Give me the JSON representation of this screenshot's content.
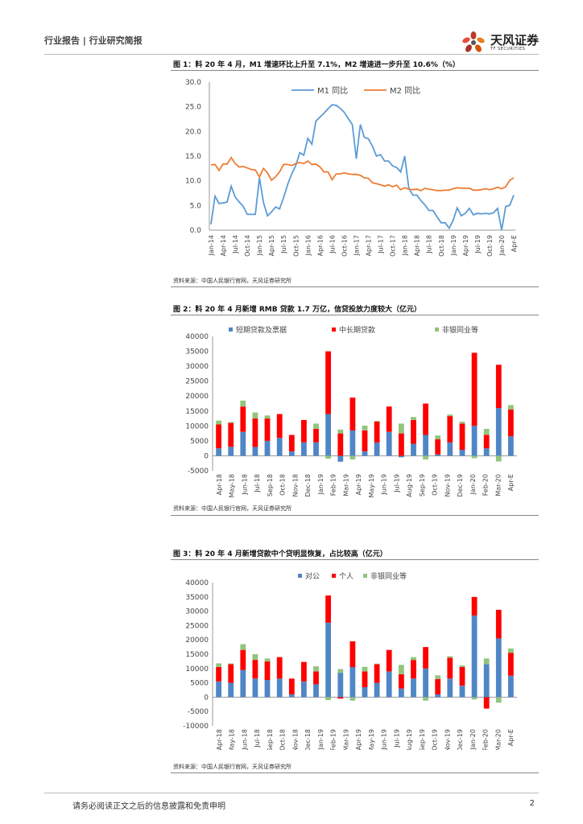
{
  "header": {
    "left_label": "行业报告 | 行业研究简报",
    "logo_cn": "天风证券",
    "logo_en": "TF SECURITIES"
  },
  "footer": {
    "disclaimer": "请务必阅读正文之后的信息披露和免责申明",
    "page_number": "2"
  },
  "colors": {
    "blue": "#5b9bd5",
    "orange": "#ed7d31",
    "red": "#ff0000",
    "green": "#92c47d",
    "bar_blue": "#4f86c6"
  },
  "chart_data": [
    {
      "type": "line",
      "title": "图 1：料 20 年 4 月，M1 增速环比上升至 7.1%，M2 增速进一步升至 10.6%（%）",
      "source": "资料来源：中国人民银行官网，天风证券研究所",
      "ylim": [
        0,
        30
      ],
      "yticks": [
        "0.0",
        "5.0",
        "10.0",
        "15.0",
        "20.0",
        "25.0",
        "30.0"
      ],
      "x_tick_labels": [
        "Jan-14",
        "Apr-14",
        "Jul-14",
        "Oct-14",
        "Jan-15",
        "Apr-15",
        "Jul-15",
        "Oct-15",
        "Jan-16",
        "Apr-16",
        "Jul-16",
        "Oct-16",
        "Jan-17",
        "Apr-17",
        "Jul-17",
        "Oct-17",
        "Jan-18",
        "Apr-18",
        "Jul-18",
        "Oct-18",
        "Jan-19",
        "Apr-19",
        "Jul-19",
        "Oct-19",
        "Jan-20",
        "Apr-E"
      ],
      "series": [
        {
          "name": "M1 同比",
          "values": [
            1.2,
            6.9,
            5.4,
            5.5,
            5.7,
            8.9,
            6.7,
            5.7,
            4.8,
            3.2,
            3.2,
            3.2,
            10.6,
            5.6,
            2.9,
            3.7,
            4.7,
            4.3,
            6.6,
            9.3,
            11.4,
            13.1,
            15.7,
            15.2,
            18.6,
            17.4,
            22.1,
            22.9,
            23.7,
            24.6,
            25.4,
            25.3,
            24.7,
            23.9,
            22.6,
            21.4,
            14.5,
            21.4,
            18.8,
            18.5,
            17.0,
            15.0,
            15.3,
            14.0,
            14.0,
            13.0,
            12.7,
            11.8,
            15.0,
            8.5,
            7.1,
            7.1,
            6.0,
            5.1,
            4.0,
            4.0,
            2.7,
            1.5,
            1.5,
            0.4,
            2.0,
            4.5,
            2.9,
            3.4,
            4.4,
            3.1,
            3.4,
            3.3,
            3.4,
            3.3,
            3.5,
            4.4,
            0.0,
            4.8,
            5.0,
            7.1
          ]
        },
        {
          "name": "M2 同比",
          "values": [
            13.2,
            13.3,
            12.1,
            13.4,
            13.4,
            14.7,
            13.5,
            12.8,
            12.9,
            12.6,
            12.3,
            12.2,
            10.8,
            12.5,
            11.6,
            10.1,
            10.8,
            11.8,
            13.3,
            13.3,
            13.1,
            13.5,
            13.7,
            13.5,
            14.0,
            13.3,
            13.4,
            12.8,
            11.8,
            11.8,
            10.2,
            11.4,
            11.4,
            11.6,
            11.4,
            11.3,
            11.3,
            11.1,
            10.6,
            10.5,
            9.6,
            9.4,
            9.2,
            8.9,
            9.2,
            8.8,
            9.1,
            8.2,
            8.6,
            8.3,
            8.2,
            8.3,
            8.0,
            8.5,
            8.3,
            8.2,
            8.0,
            8.0,
            8.1,
            8.1,
            8.4,
            8.6,
            8.5,
            8.5,
            8.5,
            8.1,
            8.1,
            8.2,
            8.4,
            8.2,
            8.4,
            8.7,
            8.4,
            8.8,
            10.1,
            10.6
          ]
        }
      ]
    },
    {
      "type": "bar",
      "stacked": true,
      "title": "图 2：料 20 年 4 月新增 RMB 贷款 1.7 万亿，信贷投放力度较大（亿元）",
      "source": "资料来源：中国人民银行官网，天风证券研究所",
      "ylim": [
        -5000,
        40000
      ],
      "yticks": [
        "-5000",
        "0",
        "5000",
        "10000",
        "15000",
        "20000",
        "25000",
        "30000",
        "35000",
        "40000"
      ],
      "categories": [
        "Apr-18",
        "May-18",
        "Jun-18",
        "Jul-18",
        "Aug-18",
        "Sep-18",
        "Oct-18",
        "Nov-18",
        "Dec-18",
        "Jan-19",
        "Feb-19",
        "Mar-19",
        "Apr-19",
        "May-19",
        "Jun-19",
        "Jul-19",
        "Aug-19",
        "Sep-19",
        "Oct-19",
        "Nov-19",
        "Dec-19",
        "Jan-20",
        "Feb-20",
        "Mar-20",
        "Apr-E"
      ],
      "x_tick_labels": [
        "Apr-18",
        "May-18",
        "Jun-18",
        "Jul-18",
        "Sep-18",
        "Oct-18",
        "Nov-18",
        "Dec-18",
        "Jan-19",
        "Feb-19",
        "Mar-19",
        "Apr-19",
        "May-19",
        "Jun-19",
        "Jul-19",
        "Aug-19",
        "Sep-19",
        "Oct-19",
        "Nov-19",
        "Dec-19",
        "Jan-20",
        "Feb-20",
        "Mar-20",
        "Apr-E"
      ],
      "series": [
        {
          "name": "短期贷款及票据",
          "values": [
            2500,
            3000,
            8000,
            3000,
            5000,
            6000,
            1500,
            4500,
            4500,
            14000,
            -2000,
            8500,
            1500,
            4500,
            8000,
            -500,
            4000,
            7000,
            500,
            4500,
            2000,
            10000,
            2500,
            16000,
            6500
          ]
        },
        {
          "name": "中长期贷款",
          "values": [
            8000,
            8000,
            8500,
            9500,
            7500,
            8000,
            5500,
            7500,
            4500,
            21000,
            7500,
            11000,
            7000,
            7000,
            8500,
            7500,
            8000,
            10500,
            5000,
            8800,
            8800,
            24500,
            4500,
            14500,
            9000
          ]
        },
        {
          "name": "非银同业等",
          "values": [
            1300,
            300,
            2000,
            2000,
            1000,
            0,
            0,
            0,
            1800,
            -1000,
            1300,
            -1200,
            1600,
            200,
            0,
            3300,
            1000,
            -1200,
            1300,
            500,
            600,
            -800,
            2000,
            -1900,
            1500
          ]
        }
      ]
    },
    {
      "type": "bar",
      "stacked": true,
      "title": "图 3：料 20 年 4 月新增贷款中个贷明显恢复，占比较高（亿元）",
      "source": "资料来源：中国人民银行官网，天风证券研究所",
      "ylim": [
        -10000,
        40000
      ],
      "yticks": [
        "-10000",
        "-5000",
        "0",
        "5000",
        "10000",
        "15000",
        "20000",
        "25000",
        "30000",
        "35000",
        "40000"
      ],
      "categories": [
        "Apr-18",
        "May-18",
        "Jun-18",
        "Jul-18",
        "Aug-18",
        "Sep-18",
        "Oct-18",
        "Nov-18",
        "Dec-18",
        "Jan-19",
        "Feb-19",
        "Mar-19",
        "Apr-19",
        "May-19",
        "Jun-19",
        "Jul-19",
        "Aug-19",
        "Sep-19",
        "Oct-19",
        "Nov-19",
        "Dec-19",
        "Jan-20",
        "Feb-20",
        "Mar-20",
        "Apr-E"
      ],
      "x_tick_labels": [
        "Apr-18",
        "May-18",
        "Jun-18",
        "Jul-18",
        "Sep-18",
        "Oct-18",
        "Nov-18",
        "Dec-18",
        "Jan-19",
        "Feb-19",
        "Mar-19",
        "Apr-19",
        "May-19",
        "Jun-19",
        "Jul-19",
        "Aug-19",
        "Sep-19",
        "Oct-19",
        "Nov-19",
        "Dec-19",
        "Jan-20",
        "Feb-20",
        "Mar-20",
        "Apr-E"
      ],
      "series": [
        {
          "name": "对公",
          "values": [
            5500,
            5000,
            9500,
            6500,
            6000,
            6500,
            1000,
            5500,
            4500,
            26000,
            8500,
            10500,
            3500,
            5000,
            9000,
            3000,
            6500,
            10000,
            1000,
            6500,
            4000,
            28500,
            11500,
            20500,
            7500
          ]
        },
        {
          "name": "个人",
          "values": [
            5000,
            6500,
            7000,
            6500,
            6500,
            7500,
            5500,
            6800,
            4500,
            9500,
            -500,
            9000,
            5500,
            6500,
            7500,
            5000,
            6500,
            7500,
            5300,
            7300,
            6500,
            6500,
            -4000,
            10000,
            8000
          ]
        },
        {
          "name": "非银同业等",
          "values": [
            1300,
            300,
            2000,
            2000,
            1000,
            0,
            0,
            0,
            1800,
            -1000,
            1300,
            -1200,
            1600,
            200,
            0,
            3300,
            1000,
            -1200,
            1300,
            500,
            600,
            -800,
            2000,
            -1900,
            1500
          ]
        }
      ]
    }
  ]
}
